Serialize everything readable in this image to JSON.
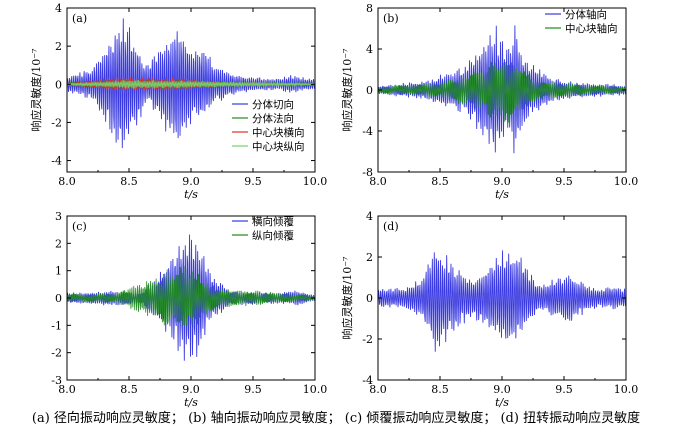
{
  "caption": "(a) 径向振动响应灵敏度； (b) 轴向振动响应灵敏度； (c) 倾覆振动响应灵敏度； (d) 扭转振动响应灵敏度",
  "chart_data": [
    {
      "type": "line",
      "panel_label": "(a)",
      "xlabel": "t/s",
      "ylabel": "响应灵敏度/10⁻⁷",
      "xlim": [
        8.0,
        10.0
      ],
      "ylim": [
        -4.6,
        4.0
      ],
      "xticks": [
        "8.0",
        "8.5",
        "9.0",
        "9.5",
        "10.0"
      ],
      "yticks": [
        "4",
        "2",
        "0",
        "-2",
        "-4"
      ],
      "ytick_values": [
        4,
        2,
        0,
        -2,
        -4
      ],
      "legend_position": "lower-right",
      "series": [
        {
          "name": "分体切向",
          "color": "#3a3ae0",
          "envelope": [
            [
              8.0,
              0.4
            ],
            [
              8.2,
              0.9
            ],
            [
              8.3,
              2.0
            ],
            [
              8.45,
              3.8
            ],
            [
              8.55,
              2.5
            ],
            [
              8.65,
              1.0
            ],
            [
              8.8,
              2.6
            ],
            [
              8.9,
              3.3
            ],
            [
              9.0,
              2.2
            ],
            [
              9.1,
              2.0
            ],
            [
              9.2,
              1.0
            ],
            [
              9.35,
              0.6
            ],
            [
              9.5,
              0.4
            ],
            [
              9.7,
              0.3
            ],
            [
              9.8,
              0.5
            ],
            [
              10.0,
              0.3
            ]
          ]
        },
        {
          "name": "分体法向",
          "color": "#1f8a1f",
          "envelope": [
            [
              8.0,
              0.1
            ],
            [
              8.4,
              0.3
            ],
            [
              8.9,
              0.3
            ],
            [
              9.4,
              0.1
            ],
            [
              10.0,
              0.1
            ]
          ]
        },
        {
          "name": "中心块横向",
          "color": "#e03030",
          "envelope": [
            [
              8.0,
              0.05
            ],
            [
              8.4,
              0.4
            ],
            [
              8.9,
              0.35
            ],
            [
              9.3,
              0.1
            ],
            [
              10.0,
              0.05
            ]
          ]
        },
        {
          "name": "中心块纵向",
          "color": "#6fd66f",
          "envelope": [
            [
              8.0,
              0.05
            ],
            [
              8.5,
              0.25
            ],
            [
              9.0,
              0.2
            ],
            [
              10.0,
              0.05
            ]
          ]
        }
      ]
    },
    {
      "type": "line",
      "panel_label": "(b)",
      "xlabel": "t/s",
      "ylabel": "响应灵敏度/10⁻⁷",
      "xlim": [
        8.0,
        10.0
      ],
      "ylim": [
        -8.0,
        8.0
      ],
      "xticks": [
        "8.0",
        "8.5",
        "9.0",
        "9.5",
        "10.0"
      ],
      "yticks": [
        "8",
        "4",
        "0",
        "-4",
        "-8"
      ],
      "ytick_values": [
        8,
        4,
        0,
        -4,
        -8
      ],
      "legend_position": "top-right",
      "series": [
        {
          "name": "分体轴向",
          "color": "#3a3ae0",
          "envelope": [
            [
              8.0,
              0.4
            ],
            [
              8.4,
              1.0
            ],
            [
              8.7,
              2.5
            ],
            [
              8.85,
              5.0
            ],
            [
              8.95,
              6.5
            ],
            [
              9.05,
              4.0
            ],
            [
              9.1,
              7.0
            ],
            [
              9.2,
              3.0
            ],
            [
              9.4,
              1.2
            ],
            [
              9.6,
              0.8
            ],
            [
              10.0,
              0.5
            ]
          ]
        },
        {
          "name": "中心块轴向",
          "color": "#1f8a1f",
          "envelope": [
            [
              8.0,
              0.3
            ],
            [
              8.5,
              0.8
            ],
            [
              8.8,
              2.0
            ],
            [
              9.0,
              3.5
            ],
            [
              9.1,
              3.0
            ],
            [
              9.3,
              1.0
            ],
            [
              10.0,
              0.3
            ]
          ]
        }
      ]
    },
    {
      "type": "line",
      "panel_label": "(c)",
      "xlabel": "t/s",
      "ylabel": "",
      "xlim": [
        8.0,
        10.0
      ],
      "ylim": [
        -3.0,
        3.0
      ],
      "xticks": [
        "8.0",
        "8.5",
        "9.0",
        "9.5",
        "10.0"
      ],
      "yticks": [
        "3",
        "2",
        "1",
        "0",
        "-1",
        "-2",
        "-3"
      ],
      "ytick_values": [
        3,
        2,
        1,
        0,
        -1,
        -2,
        -3
      ],
      "legend_position": "top-right",
      "series": [
        {
          "name": "横向倾覆",
          "color": "#3a3ae0",
          "envelope": [
            [
              8.0,
              0.2
            ],
            [
              8.4,
              0.3
            ],
            [
              8.6,
              0.2
            ],
            [
              8.75,
              1.0
            ],
            [
              8.9,
              2.0
            ],
            [
              8.97,
              2.6
            ],
            [
              9.05,
              2.2
            ],
            [
              9.15,
              1.0
            ],
            [
              9.3,
              0.3
            ],
            [
              9.7,
              0.2
            ],
            [
              9.85,
              0.3
            ],
            [
              10.0,
              0.1
            ]
          ]
        },
        {
          "name": "纵向倾覆",
          "color": "#1f8a1f",
          "envelope": [
            [
              8.0,
              0.15
            ],
            [
              8.4,
              0.2
            ],
            [
              8.9,
              1.3
            ],
            [
              9.0,
              1.2
            ],
            [
              9.2,
              0.4
            ],
            [
              10.0,
              0.1
            ]
          ]
        }
      ]
    },
    {
      "type": "line",
      "panel_label": "(d)",
      "xlabel": "t/s",
      "ylabel": "响应灵敏度/10⁻⁷",
      "xlim": [
        8.0,
        10.0
      ],
      "ylim": [
        -4.0,
        4.0
      ],
      "xticks": [
        "8.0",
        "8.5",
        "9.0",
        "9.5",
        "10.0"
      ],
      "yticks": [
        "4",
        "2",
        "0",
        "-2",
        "-4"
      ],
      "ytick_values": [
        4,
        2,
        0,
        -2,
        -4
      ],
      "legend_position": "none",
      "series": [
        {
          "name": "",
          "color": "#3a3ae0",
          "envelope": [
            [
              8.0,
              0.5
            ],
            [
              8.2,
              0.5
            ],
            [
              8.35,
              1.0
            ],
            [
              8.47,
              3.0
            ],
            [
              8.6,
              1.8
            ],
            [
              8.75,
              1.0
            ],
            [
              8.9,
              1.8
            ],
            [
              9.05,
              2.6
            ],
            [
              9.15,
              2.2
            ],
            [
              9.3,
              0.6
            ],
            [
              9.45,
              1.1
            ],
            [
              9.55,
              1.3
            ],
            [
              9.7,
              0.6
            ],
            [
              9.8,
              0.5
            ],
            [
              9.9,
              0.6
            ],
            [
              10.0,
              0.5
            ]
          ]
        }
      ]
    }
  ]
}
